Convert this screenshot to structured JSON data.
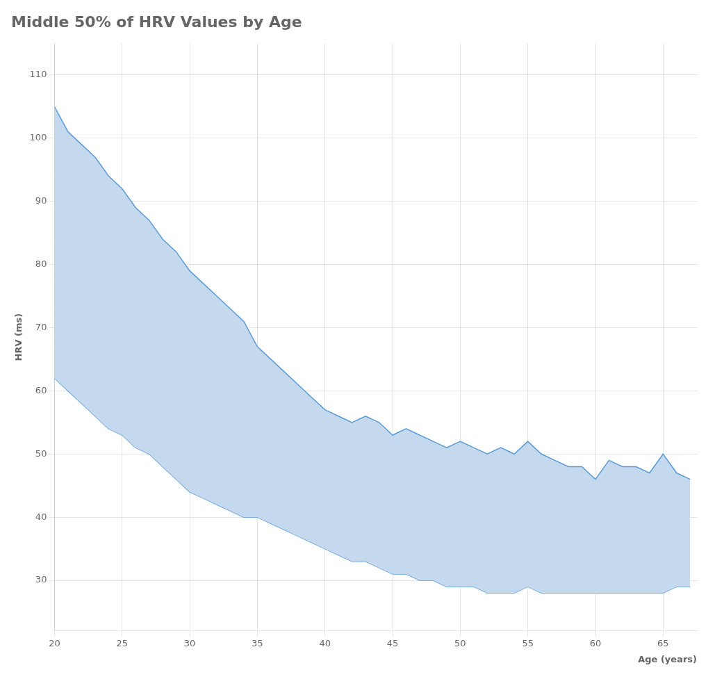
{
  "chart_data": {
    "type": "band",
    "title": "Middle 50% of HRV Values by Age",
    "y_label": "HRV (ms)",
    "x_label": "Age (years)",
    "color": "#c5d9ee",
    "x": [
      20,
      21,
      22,
      23,
      24,
      25,
      26,
      27,
      28,
      29,
      30,
      31,
      32,
      33,
      34,
      35,
      36,
      37,
      38,
      39,
      40,
      41,
      42,
      43,
      44,
      45,
      46,
      47,
      48,
      49,
      50,
      51,
      52,
      53,
      54,
      55,
      56,
      57,
      58,
      59,
      60,
      61,
      62,
      63,
      64,
      65,
      66,
      67
    ],
    "series": [
      {
        "color": "#5b9bd5",
        "values": [
          105,
          101,
          99,
          97,
          94,
          92,
          89,
          87,
          84,
          82,
          79,
          77,
          75,
          73,
          71,
          67,
          65,
          63,
          61,
          59,
          57,
          56,
          55,
          56,
          55,
          53,
          54,
          53,
          52,
          51,
          52,
          51,
          50,
          51,
          50,
          52,
          50,
          49,
          48,
          48,
          46,
          49,
          48,
          48,
          47,
          50,
          47,
          46
        ]
      },
      {
        "color": "#5b9bd5",
        "values": [
          62,
          60,
          58,
          56,
          54,
          53,
          51,
          50,
          48,
          46,
          44,
          43,
          42,
          41,
          40,
          40,
          39,
          38,
          37,
          36,
          35,
          34,
          33,
          33,
          32,
          31,
          31,
          30,
          30,
          29,
          29,
          29,
          28,
          28,
          28,
          29,
          28,
          28,
          28,
          28,
          28,
          28,
          28,
          28,
          28,
          28,
          29,
          29
        ]
      }
    ],
    "xlim": [
      20,
      67.5
    ],
    "ylim": [
      22,
      115
    ],
    "xticks": [
      20,
      25,
      30,
      35,
      40,
      45,
      50,
      55,
      60,
      65
    ],
    "yticks": [
      30,
      40,
      50,
      60,
      70,
      80,
      90,
      100,
      110
    ],
    "grid": true
  }
}
